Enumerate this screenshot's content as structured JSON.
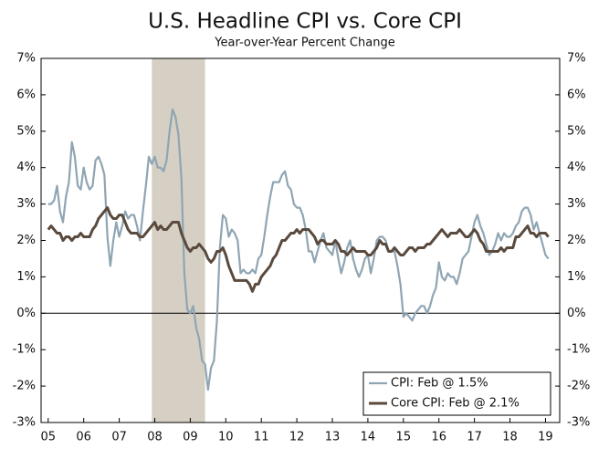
{
  "chart_data": {
    "type": "line",
    "title": "U.S. Headline CPI vs. Core CPI",
    "subtitle": "Year-over-Year Percent Change",
    "x": [
      2005,
      2005.083,
      2005.167,
      2005.25,
      2005.333,
      2005.417,
      2005.5,
      2005.583,
      2005.667,
      2005.75,
      2005.833,
      2005.917,
      2006,
      2006.083,
      2006.167,
      2006.25,
      2006.333,
      2006.417,
      2006.5,
      2006.583,
      2006.667,
      2006.75,
      2006.833,
      2006.917,
      2007,
      2007.083,
      2007.167,
      2007.25,
      2007.333,
      2007.417,
      2007.5,
      2007.583,
      2007.667,
      2007.75,
      2007.833,
      2007.917,
      2008,
      2008.083,
      2008.167,
      2008.25,
      2008.333,
      2008.417,
      2008.5,
      2008.583,
      2008.667,
      2008.75,
      2008.833,
      2008.917,
      2009,
      2009.083,
      2009.167,
      2009.25,
      2009.333,
      2009.417,
      2009.5,
      2009.583,
      2009.667,
      2009.75,
      2009.833,
      2009.917,
      2010,
      2010.083,
      2010.167,
      2010.25,
      2010.333,
      2010.417,
      2010.5,
      2010.583,
      2010.667,
      2010.75,
      2010.833,
      2010.917,
      2011,
      2011.083,
      2011.167,
      2011.25,
      2011.333,
      2011.417,
      2011.5,
      2011.583,
      2011.667,
      2011.75,
      2011.833,
      2011.917,
      2012,
      2012.083,
      2012.167,
      2012.25,
      2012.333,
      2012.417,
      2012.5,
      2012.583,
      2012.667,
      2012.75,
      2012.833,
      2012.917,
      2013,
      2013.083,
      2013.167,
      2013.25,
      2013.333,
      2013.417,
      2013.5,
      2013.583,
      2013.667,
      2013.75,
      2013.833,
      2013.917,
      2014,
      2014.083,
      2014.167,
      2014.25,
      2014.333,
      2014.417,
      2014.5,
      2014.583,
      2014.667,
      2014.75,
      2014.833,
      2014.917,
      2015,
      2015.083,
      2015.167,
      2015.25,
      2015.333,
      2015.417,
      2015.5,
      2015.583,
      2015.667,
      2015.75,
      2015.833,
      2015.917,
      2016,
      2016.083,
      2016.167,
      2016.25,
      2016.333,
      2016.417,
      2016.5,
      2016.583,
      2016.667,
      2016.75,
      2016.833,
      2016.917,
      2017,
      2017.083,
      2017.167,
      2017.25,
      2017.333,
      2017.417,
      2017.5,
      2017.583,
      2017.667,
      2017.75,
      2017.833,
      2017.917,
      2018,
      2018.083,
      2018.167,
      2018.25,
      2018.333,
      2018.417,
      2018.5,
      2018.583,
      2018.667,
      2018.75,
      2018.833,
      2018.917,
      2019,
      2019.083
    ],
    "series": [
      {
        "name": "CPI: Feb @ 1.5%",
        "color": "#8fa5b3",
        "values": [
          3.0,
          3.0,
          3.1,
          3.5,
          2.8,
          2.5,
          3.2,
          3.6,
          4.7,
          4.3,
          3.5,
          3.4,
          4.0,
          3.6,
          3.4,
          3.5,
          4.2,
          4.3,
          4.1,
          3.8,
          2.1,
          1.3,
          2.0,
          2.5,
          2.1,
          2.4,
          2.8,
          2.6,
          2.7,
          2.7,
          2.4,
          2.0,
          2.8,
          3.5,
          4.3,
          4.1,
          4.3,
          4.0,
          4.0,
          3.9,
          4.2,
          5.0,
          5.6,
          5.4,
          4.9,
          3.7,
          1.1,
          0.1,
          0.0,
          0.2,
          -0.4,
          -0.7,
          -1.3,
          -1.4,
          -2.1,
          -1.5,
          -1.3,
          -0.2,
          1.8,
          2.7,
          2.6,
          2.1,
          2.3,
          2.2,
          2.0,
          1.1,
          1.2,
          1.1,
          1.1,
          1.2,
          1.1,
          1.5,
          1.6,
          2.1,
          2.7,
          3.2,
          3.6,
          3.6,
          3.6,
          3.8,
          3.9,
          3.5,
          3.4,
          3.0,
          2.9,
          2.9,
          2.7,
          2.3,
          1.7,
          1.7,
          1.4,
          1.7,
          2.0,
          2.2,
          1.8,
          1.7,
          1.6,
          2.0,
          1.5,
          1.1,
          1.4,
          1.8,
          2.0,
          1.5,
          1.2,
          1.0,
          1.2,
          1.5,
          1.6,
          1.1,
          1.5,
          2.0,
          2.1,
          2.1,
          2.0,
          1.7,
          1.7,
          1.7,
          1.3,
          0.8,
          -0.1,
          0.0,
          -0.1,
          -0.2,
          0.0,
          0.1,
          0.2,
          0.2,
          0.0,
          0.2,
          0.5,
          0.7,
          1.4,
          1.0,
          0.9,
          1.1,
          1.0,
          1.0,
          0.8,
          1.1,
          1.5,
          1.6,
          1.7,
          2.1,
          2.5,
          2.7,
          2.4,
          2.2,
          1.9,
          1.6,
          1.7,
          1.9,
          2.2,
          2.0,
          2.2,
          2.1,
          2.1,
          2.2,
          2.4,
          2.5,
          2.8,
          2.9,
          2.9,
          2.7,
          2.3,
          2.5,
          2.2,
          1.9,
          1.6,
          1.5
        ]
      },
      {
        "name": "Core CPI: Feb @ 2.1%",
        "color": "#5a4a3e",
        "values": [
          2.3,
          2.4,
          2.3,
          2.2,
          2.2,
          2.0,
          2.1,
          2.1,
          2.0,
          2.1,
          2.1,
          2.2,
          2.1,
          2.1,
          2.1,
          2.3,
          2.4,
          2.6,
          2.7,
          2.8,
          2.9,
          2.7,
          2.6,
          2.6,
          2.7,
          2.7,
          2.5,
          2.3,
          2.2,
          2.2,
          2.2,
          2.1,
          2.1,
          2.2,
          2.3,
          2.4,
          2.5,
          2.3,
          2.4,
          2.3,
          2.3,
          2.4,
          2.5,
          2.5,
          2.5,
          2.2,
          2.0,
          1.8,
          1.7,
          1.8,
          1.8,
          1.9,
          1.8,
          1.7,
          1.5,
          1.4,
          1.5,
          1.7,
          1.7,
          1.8,
          1.6,
          1.3,
          1.1,
          0.9,
          0.9,
          0.9,
          0.9,
          0.9,
          0.8,
          0.6,
          0.8,
          0.8,
          1.0,
          1.1,
          1.2,
          1.3,
          1.5,
          1.6,
          1.8,
          2.0,
          2.0,
          2.1,
          2.2,
          2.2,
          2.3,
          2.2,
          2.3,
          2.3,
          2.3,
          2.2,
          2.1,
          1.9,
          2.0,
          2.0,
          1.9,
          1.9,
          1.9,
          2.0,
          1.9,
          1.7,
          1.7,
          1.6,
          1.7,
          1.8,
          1.7,
          1.7,
          1.7,
          1.7,
          1.6,
          1.6,
          1.7,
          1.8,
          2.0,
          1.9,
          1.9,
          1.7,
          1.7,
          1.8,
          1.7,
          1.6,
          1.6,
          1.7,
          1.8,
          1.8,
          1.7,
          1.8,
          1.8,
          1.8,
          1.9,
          1.9,
          2.0,
          2.1,
          2.2,
          2.3,
          2.2,
          2.1,
          2.2,
          2.2,
          2.2,
          2.3,
          2.2,
          2.1,
          2.1,
          2.2,
          2.3,
          2.2,
          2.0,
          1.9,
          1.7,
          1.7,
          1.7,
          1.7,
          1.7,
          1.8,
          1.7,
          1.8,
          1.8,
          1.8,
          2.1,
          2.1,
          2.2,
          2.3,
          2.4,
          2.2,
          2.2,
          2.1,
          2.2,
          2.2,
          2.2,
          2.1
        ]
      }
    ],
    "recession": {
      "start": 2007.917,
      "end": 2009.417,
      "color": "#d6d0c4"
    },
    "xlim": [
      2004.8,
      2019.4
    ],
    "xticks": [
      {
        "value": 2005,
        "label": "05"
      },
      {
        "value": 2006,
        "label": "06"
      },
      {
        "value": 2007,
        "label": "07"
      },
      {
        "value": 2008,
        "label": "08"
      },
      {
        "value": 2009,
        "label": "09"
      },
      {
        "value": 2010,
        "label": "10"
      },
      {
        "value": 2011,
        "label": "11"
      },
      {
        "value": 2012,
        "label": "12"
      },
      {
        "value": 2013,
        "label": "13"
      },
      {
        "value": 2014,
        "label": "14"
      },
      {
        "value": 2015,
        "label": "15"
      },
      {
        "value": 2016,
        "label": "16"
      },
      {
        "value": 2017,
        "label": "17"
      },
      {
        "value": 2018,
        "label": "18"
      },
      {
        "value": 2019,
        "label": "19"
      }
    ],
    "ylim": [
      -3,
      7
    ],
    "yticks": [
      {
        "value": -3,
        "label": "-3%"
      },
      {
        "value": -2,
        "label": "-2%"
      },
      {
        "value": -1,
        "label": "-1%"
      },
      {
        "value": 0,
        "label": "0%"
      },
      {
        "value": 1,
        "label": "1%"
      },
      {
        "value": 2,
        "label": "2%"
      },
      {
        "value": 3,
        "label": "3%"
      },
      {
        "value": 4,
        "label": "4%"
      },
      {
        "value": 5,
        "label": "5%"
      },
      {
        "value": 6,
        "label": "6%"
      },
      {
        "value": 7,
        "label": "7%"
      }
    ],
    "y2lim": [
      -3,
      7
    ],
    "y2ticks": [
      {
        "value": -3,
        "label": "-3%"
      },
      {
        "value": -2,
        "label": "-2%"
      },
      {
        "value": -1,
        "label": "-1%"
      },
      {
        "value": 0,
        "label": "0%"
      },
      {
        "value": 1,
        "label": "1%"
      },
      {
        "value": 2,
        "label": "2%"
      },
      {
        "value": 3,
        "label": "3%"
      },
      {
        "value": 4,
        "label": "4%"
      },
      {
        "value": 5,
        "label": "5%"
      },
      {
        "value": 6,
        "label": "6%"
      },
      {
        "value": 7,
        "label": "7%"
      }
    ],
    "grid": false,
    "legend": "lower right"
  }
}
